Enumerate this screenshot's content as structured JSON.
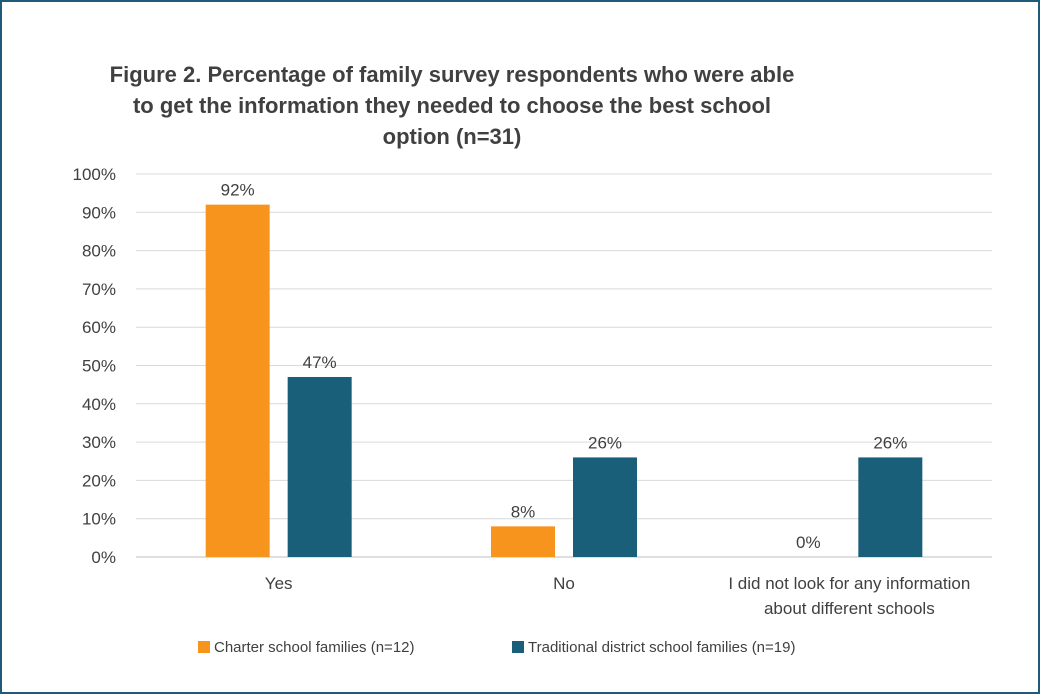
{
  "chart_data": {
    "type": "bar",
    "title_lines": [
      "Figure 2. Percentage of family survey respondents who were able",
      "to get the information they needed to choose the best school",
      "option (n=31)"
    ],
    "categories": [
      [
        "Yes"
      ],
      [
        "No"
      ],
      [
        "I did not look for any information",
        "about different schools"
      ]
    ],
    "series": [
      {
        "name": "Charter school families (n=12)",
        "values": [
          92,
          8,
          0
        ],
        "labels": [
          "92%",
          "8%",
          "0%"
        ],
        "color": "#f7941d"
      },
      {
        "name": "Traditional district school families (n=19)",
        "values": [
          47,
          26,
          26
        ],
        "labels": [
          "47%",
          "26%",
          "26%"
        ],
        "color": "#1a5f7a"
      }
    ],
    "ylim": [
      0,
      100
    ],
    "yticks": [
      "0%",
      "10%",
      "20%",
      "30%",
      "40%",
      "50%",
      "60%",
      "70%",
      "80%",
      "90%",
      "100%"
    ],
    "grid": true,
    "legend_position": "bottom",
    "frame_color": "#1f5a7a"
  }
}
